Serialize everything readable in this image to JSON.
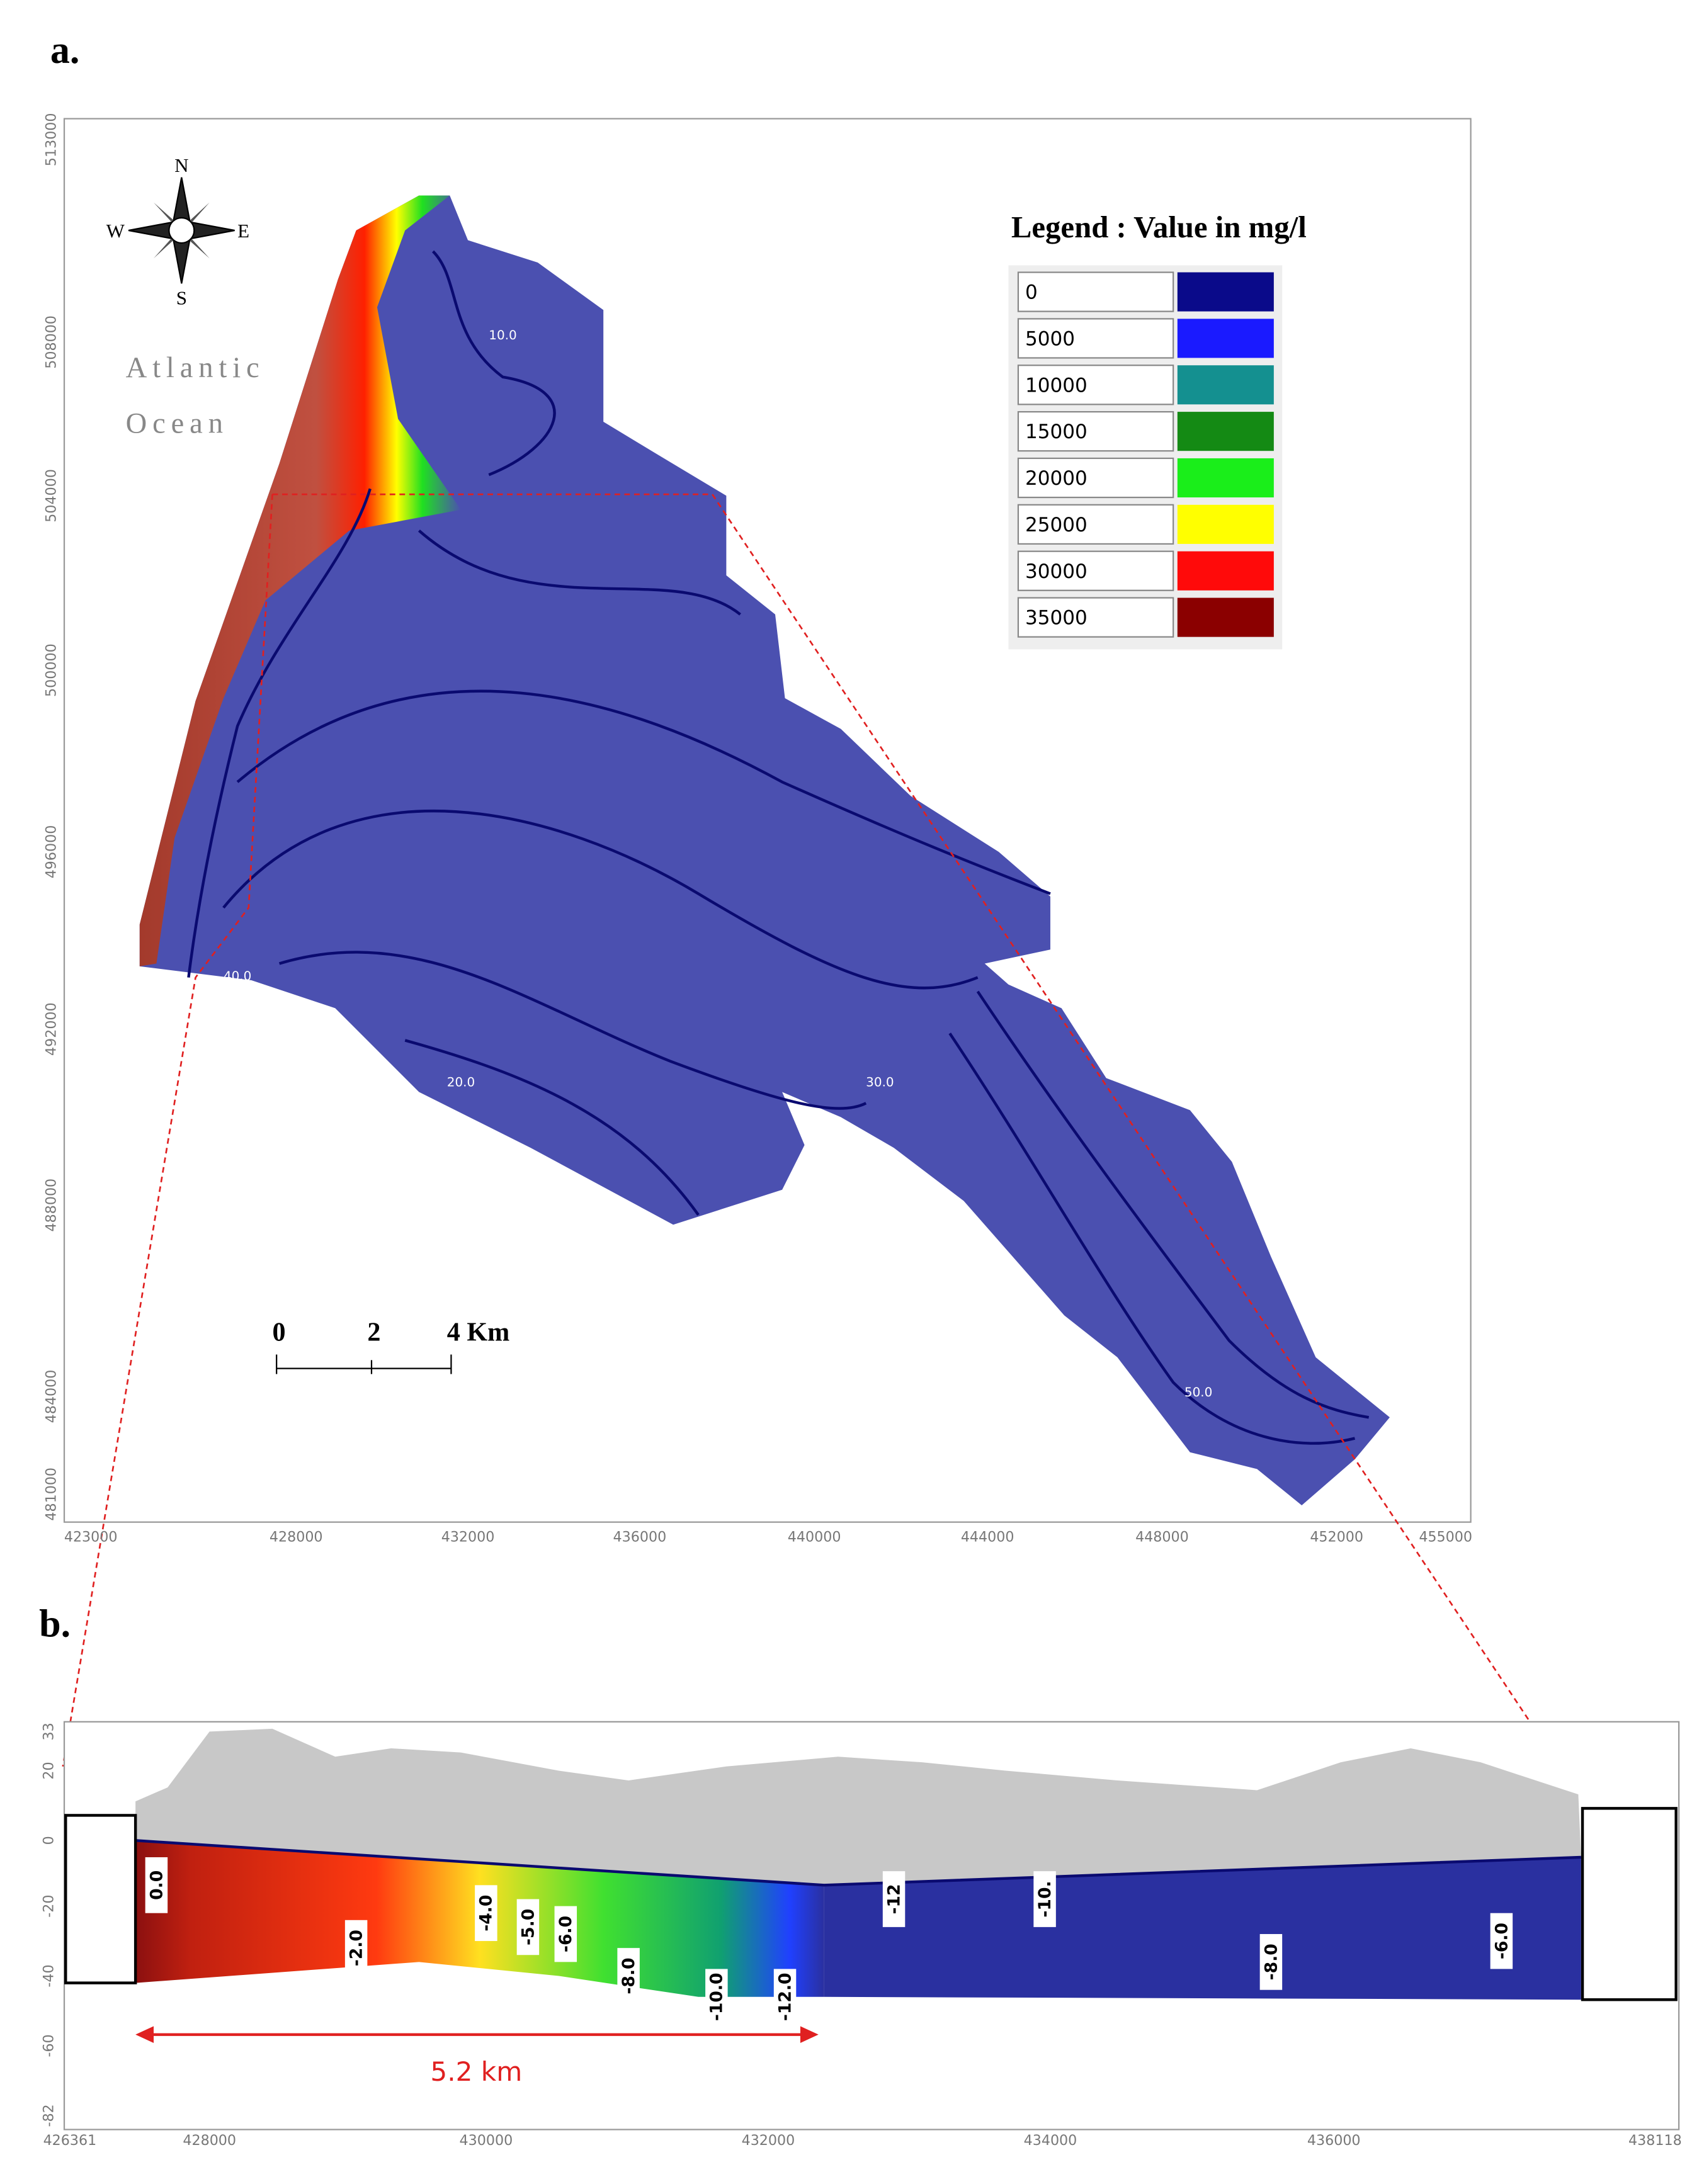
{
  "panel_a": {
    "label": "a.",
    "x_ticks": [
      "423000",
      "428000",
      "432000",
      "436000",
      "440000",
      "444000",
      "448000",
      "452000",
      "455000"
    ],
    "y_ticks": [
      "513000",
      "508000",
      "504000",
      "500000",
      "496000",
      "492000",
      "488000",
      "484000",
      "481000"
    ],
    "compass": {
      "n": "N",
      "s": "S",
      "e": "E",
      "w": "W"
    },
    "place_label": [
      "Atlantic",
      "Ocean"
    ],
    "legend": {
      "title": "Legend : Value in mg/l",
      "entries": [
        {
          "label": "0",
          "color": "#0a0a8a"
        },
        {
          "label": "5000",
          "color": "#1a1aff"
        },
        {
          "label": "10000",
          "color": "#149090"
        },
        {
          "label": "15000",
          "color": "#148a14"
        },
        {
          "label": "20000",
          "color": "#1aee1a"
        },
        {
          "label": "25000",
          "color": "#ffff00"
        },
        {
          "label": "30000",
          "color": "#ff0a0a"
        },
        {
          "label": "35000",
          "color": "#8b0000"
        }
      ]
    },
    "scale_bar": [
      "0",
      "2",
      "4 Km"
    ],
    "contour_labels": [
      "10.0",
      "20.0",
      "30.0",
      "40.0",
      "50.0"
    ]
  },
  "panel_b": {
    "label": "b.",
    "x_ticks": [
      "426361",
      "428000",
      "430000",
      "432000",
      "434000",
      "436000",
      "438118"
    ],
    "y_ticks": [
      "33",
      "20",
      "0",
      "-20",
      "-40",
      "-60",
      "-82"
    ],
    "distance_label": "5.2 km",
    "contour_labels": [
      "0.0",
      "-2.0",
      "-4.0",
      "-5.0",
      "-6.0",
      "-8.0",
      "-10.0",
      "-12.0",
      "-12",
      "-10.",
      "-8.0",
      "-6.0"
    ]
  }
}
